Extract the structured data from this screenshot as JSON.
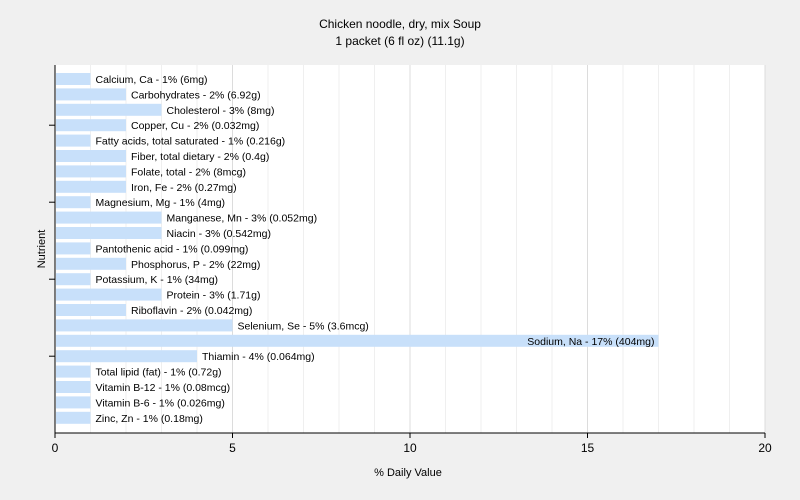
{
  "chart_data": {
    "type": "bar",
    "orientation": "horizontal",
    "title": "Chicken noodle, dry, mix Soup",
    "subtitle": "1 packet (6 fl oz) (11.1g)",
    "xlabel": "% Daily Value",
    "ylabel": "Nutrient",
    "xlim": [
      0,
      20
    ],
    "xticks": [
      0,
      5,
      10,
      15,
      20
    ],
    "grid": true,
    "bar_color": "#c8e0fa",
    "bars": [
      {
        "label": "Calcium, Ca - 1% (6mg)",
        "value": 1
      },
      {
        "label": "Carbohydrates - 2% (6.92g)",
        "value": 2
      },
      {
        "label": "Cholesterol - 3% (8mg)",
        "value": 3
      },
      {
        "label": "Copper, Cu - 2% (0.032mg)",
        "value": 2
      },
      {
        "label": "Fatty acids, total saturated - 1% (0.216g)",
        "value": 1
      },
      {
        "label": "Fiber, total dietary - 2% (0.4g)",
        "value": 2
      },
      {
        "label": "Folate, total - 2% (8mcg)",
        "value": 2
      },
      {
        "label": "Iron, Fe - 2% (0.27mg)",
        "value": 2
      },
      {
        "label": "Magnesium, Mg - 1% (4mg)",
        "value": 1
      },
      {
        "label": "Manganese, Mn - 3% (0.052mg)",
        "value": 3
      },
      {
        "label": "Niacin - 3% (0.542mg)",
        "value": 3
      },
      {
        "label": "Pantothenic acid - 1% (0.099mg)",
        "value": 1
      },
      {
        "label": "Phosphorus, P - 2% (22mg)",
        "value": 2
      },
      {
        "label": "Potassium, K - 1% (34mg)",
        "value": 1
      },
      {
        "label": "Protein - 3% (1.71g)",
        "value": 3
      },
      {
        "label": "Riboflavin - 2% (0.042mg)",
        "value": 2
      },
      {
        "label": "Selenium, Se - 5% (3.6mcg)",
        "value": 5
      },
      {
        "label": "Sodium, Na - 17% (404mg)",
        "value": 17
      },
      {
        "label": "Thiamin - 4% (0.064mg)",
        "value": 4
      },
      {
        "label": "Total lipid (fat) - 1% (0.72g)",
        "value": 1
      },
      {
        "label": "Vitamin B-12 - 1% (0.08mcg)",
        "value": 1
      },
      {
        "label": "Vitamin B-6 - 1% (0.026mg)",
        "value": 1
      },
      {
        "label": "Zinc, Zn - 1% (0.18mg)",
        "value": 1
      }
    ]
  }
}
